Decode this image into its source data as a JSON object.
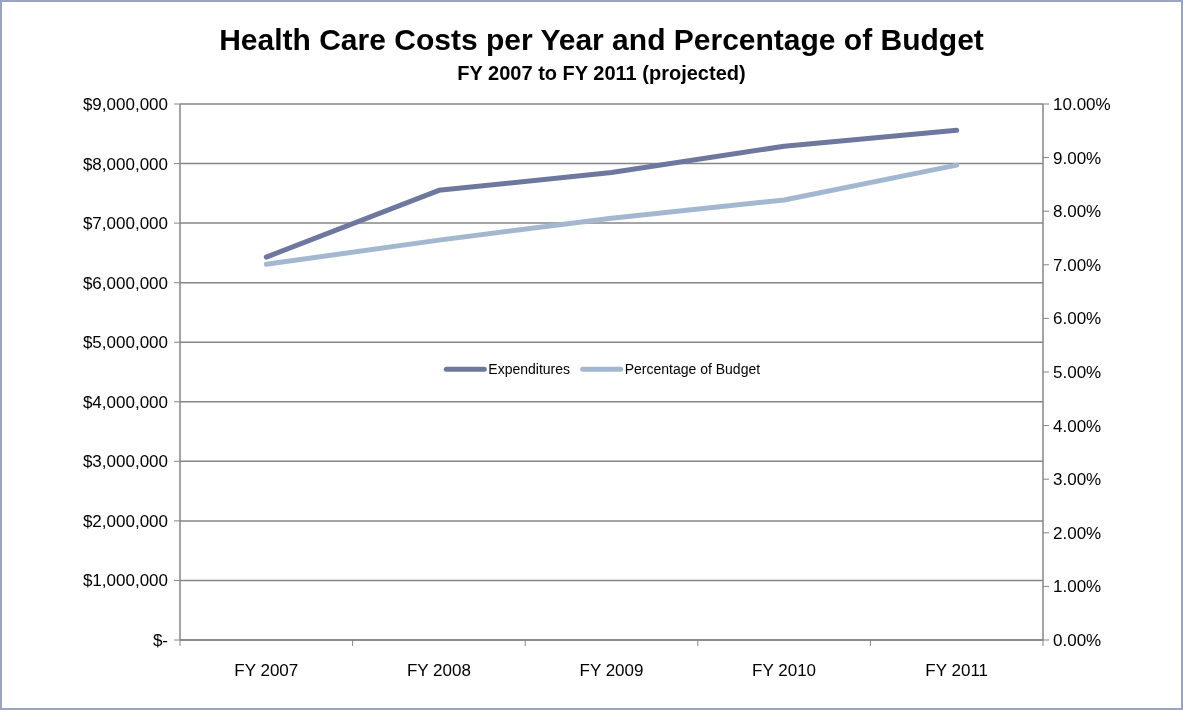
{
  "chart_data": {
    "type": "line",
    "title": "Health Care Costs per Year and Percentage of Budget",
    "subtitle": "FY 2007 to FY 2011 (projected)",
    "categories": [
      "FY 2007",
      "FY 2008",
      "FY 2009",
      "FY 2010",
      "FY 2011"
    ],
    "series": [
      {
        "name": "Expenditures",
        "color": "#6e789f",
        "values": [
          6430000,
          7550000,
          7850000,
          8290000,
          8560000
        ]
      },
      {
        "name": "Percentage of Budget",
        "color": "#a3b8d0",
        "axis": "y2",
        "values": [
          7.01,
          7.46,
          7.87,
          8.21,
          8.86
        ]
      }
    ],
    "ylim": [
      0,
      9000000
    ],
    "yticks": [
      {
        "value": 0,
        "label": "$-"
      },
      {
        "value": 1000000,
        "label": "$1,000,000"
      },
      {
        "value": 2000000,
        "label": "$2,000,000"
      },
      {
        "value": 3000000,
        "label": "$3,000,000"
      },
      {
        "value": 4000000,
        "label": "$4,000,000"
      },
      {
        "value": 5000000,
        "label": "$5,000,000"
      },
      {
        "value": 6000000,
        "label": "$6,000,000"
      },
      {
        "value": 7000000,
        "label": "$7,000,000"
      },
      {
        "value": 8000000,
        "label": "$8,000,000"
      },
      {
        "value": 9000000,
        "label": "$9,000,000"
      }
    ],
    "y2lim": [
      0,
      10
    ],
    "y2ticks": [
      {
        "value": 0,
        "label": "0.00%"
      },
      {
        "value": 1,
        "label": "1.00%"
      },
      {
        "value": 2,
        "label": "2.00%"
      },
      {
        "value": 3,
        "label": "3.00%"
      },
      {
        "value": 4,
        "label": "4.00%"
      },
      {
        "value": 5,
        "label": "5.00%"
      },
      {
        "value": 6,
        "label": "6.00%"
      },
      {
        "value": 7,
        "label": "7.00%"
      },
      {
        "value": 8,
        "label": "8.00%"
      },
      {
        "value": 9,
        "label": "9.00%"
      },
      {
        "value": 10,
        "label": "10.00%"
      }
    ],
    "grid": "y",
    "legend": "center",
    "marker": "none",
    "line_style": "solid"
  }
}
